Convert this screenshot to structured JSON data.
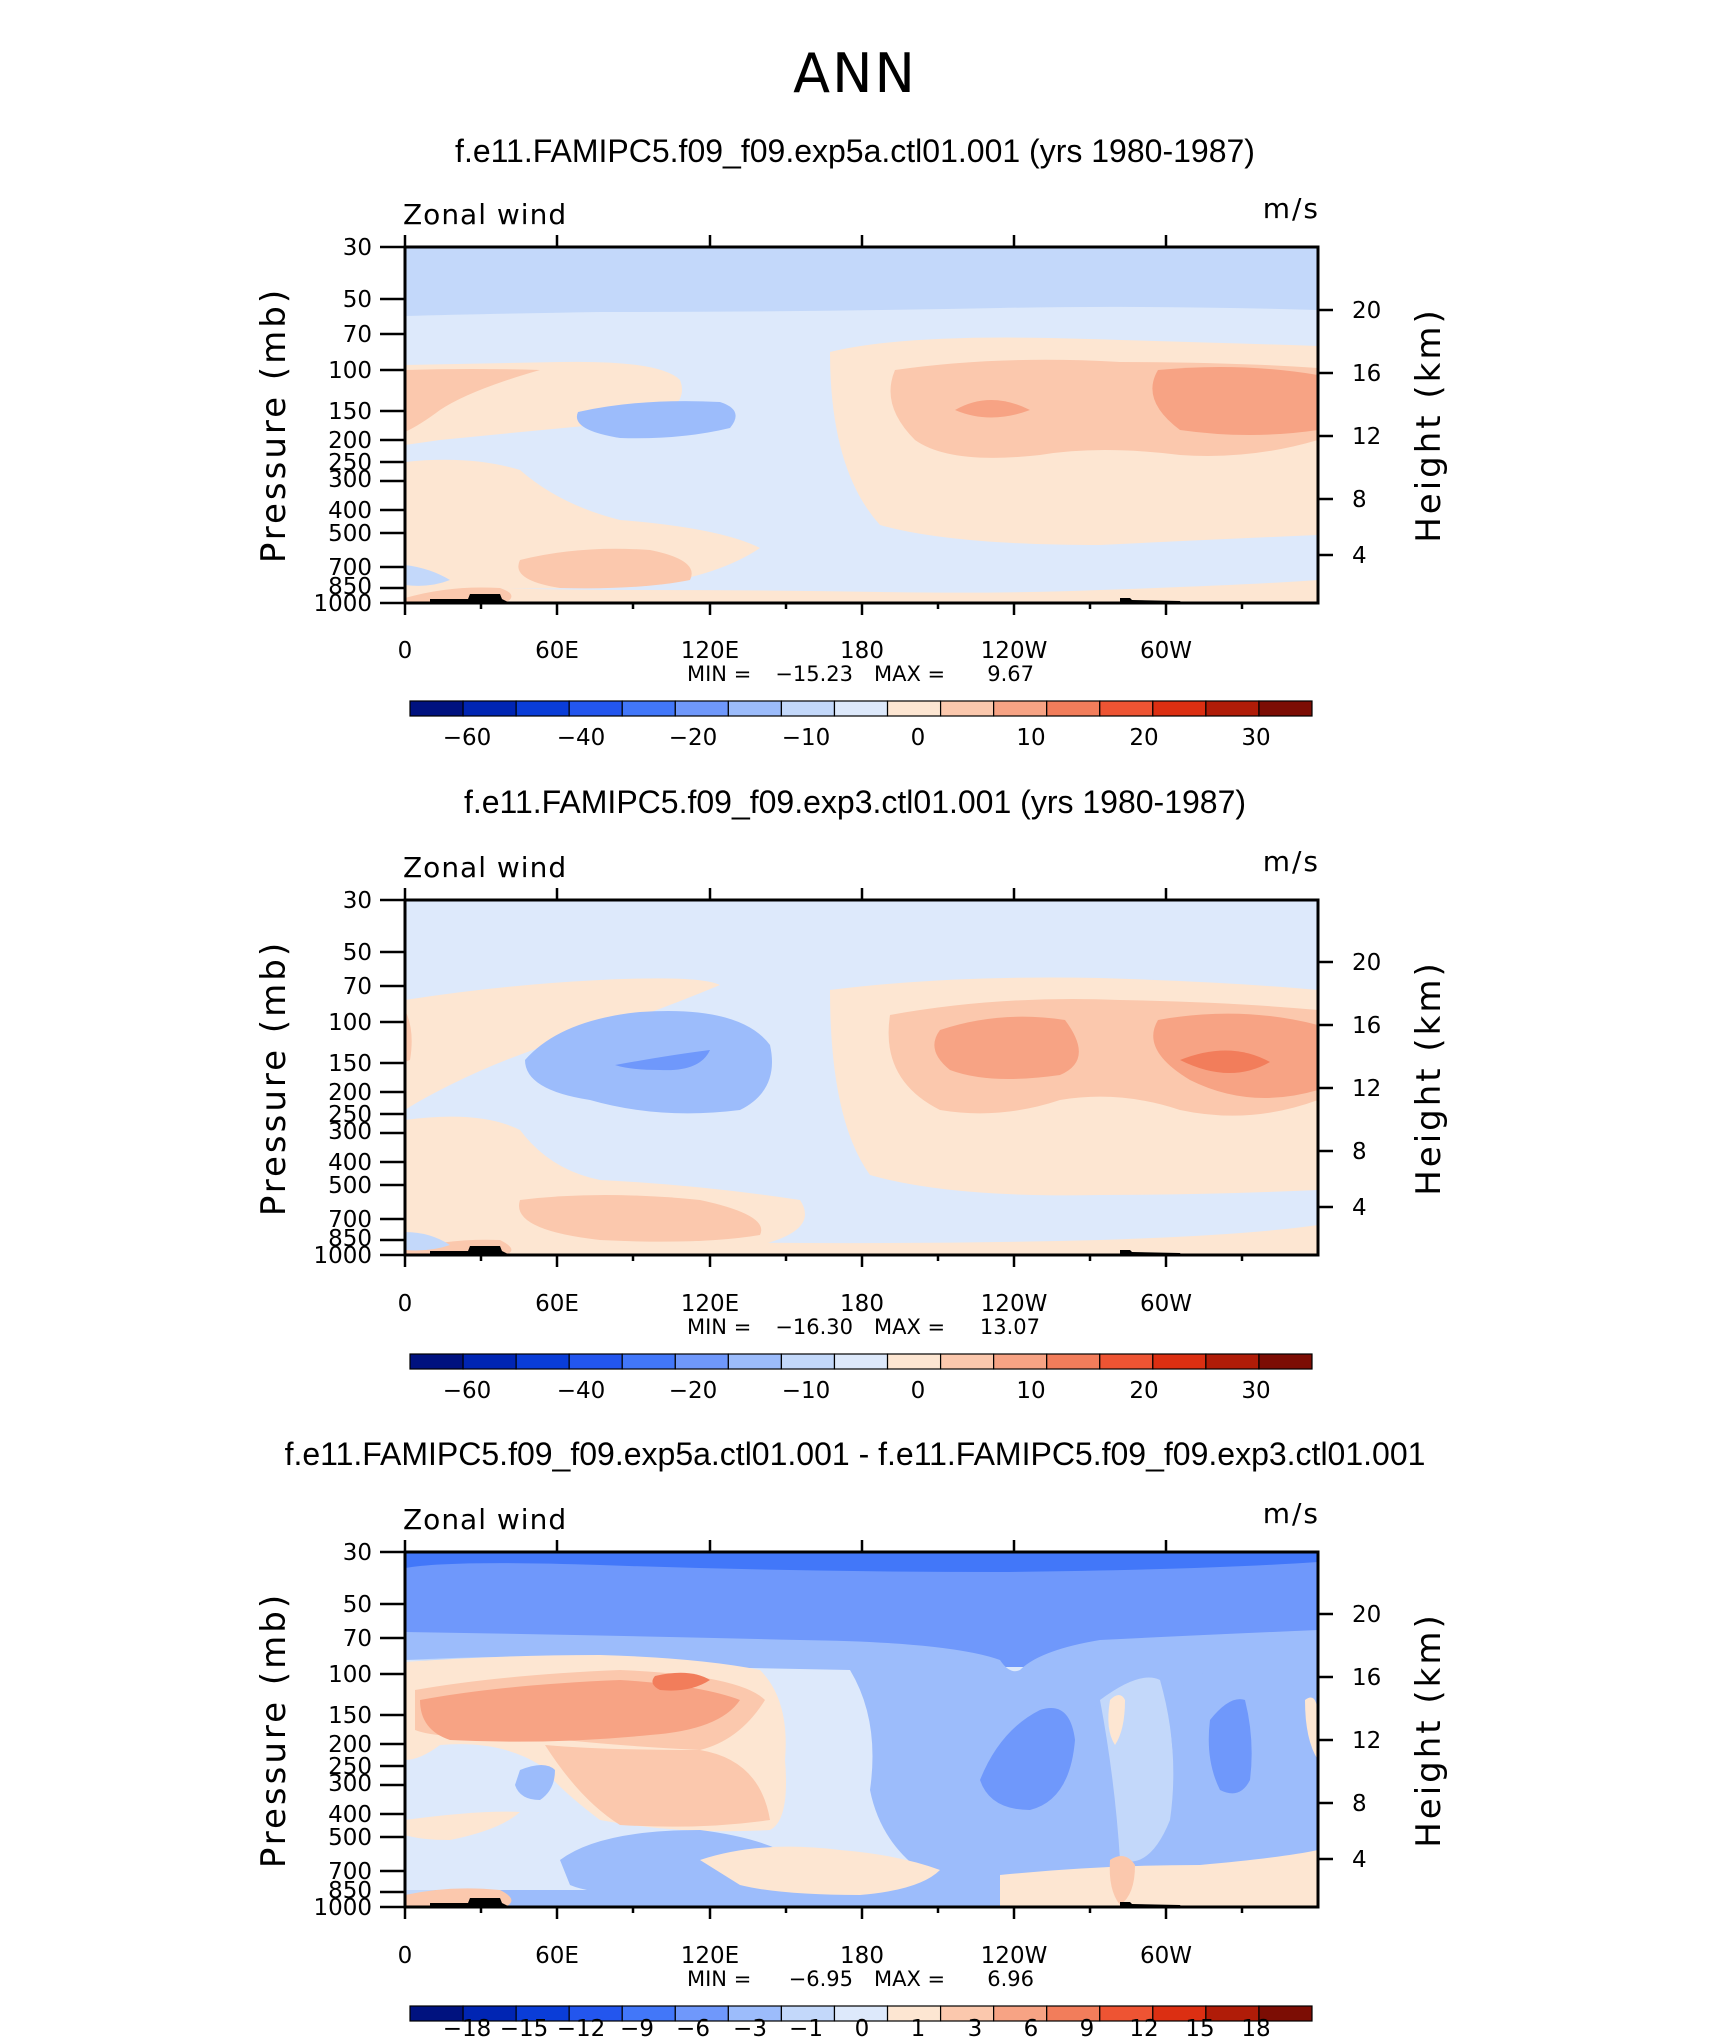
{
  "page": {
    "title": "ANN"
  },
  "colormap_main": [
    "#00127f",
    "#0025b3",
    "#0a3dd8",
    "#2356ee",
    "#4277f9",
    "#6f98fb",
    "#9cbcfb",
    "#c3d8fa",
    "#dde9fb",
    "#fde6d2",
    "#fbc8ad",
    "#f7a384",
    "#f27d5b",
    "#ee5433",
    "#dc2f12",
    "#b01c08",
    "#7c0d04"
  ],
  "colormap_diff": [
    "#00127f",
    "#0025b3",
    "#0a3dd8",
    "#2356ee",
    "#4277f9",
    "#6f98fb",
    "#9cbcfb",
    "#c3d8fa",
    "#dde9fb",
    "#fde6d2",
    "#fbc8ad",
    "#f7a384",
    "#f27d5b",
    "#ee5433",
    "#dc2f12",
    "#b01c08",
    "#7c0d04"
  ],
  "panels": [
    {
      "title": "f.e11.FAMIPC5.f09_f09.exp5a.ctl01.001 (yrs 1980-1987)",
      "left_label": "Zonal wind",
      "right_label": "m/s",
      "min_label": "MIN =",
      "min_value": "−15.23",
      "max_label": "MAX =",
      "max_value": "9.67",
      "colorbar_ticks": [
        "−60",
        "−40",
        "−20",
        "−10",
        "0",
        "10",
        "20",
        "30"
      ]
    },
    {
      "title": "f.e11.FAMIPC5.f09_f09.exp3.ctl01.001 (yrs 1980-1987)",
      "left_label": "Zonal wind",
      "right_label": "m/s",
      "min_label": "MIN =",
      "min_value": "−16.30",
      "max_label": "MAX =",
      "max_value": "13.07",
      "colorbar_ticks": [
        "−60",
        "−40",
        "−20",
        "−10",
        "0",
        "10",
        "20",
        "30"
      ]
    },
    {
      "title": "f.e11.FAMIPC5.f09_f09.exp5a.ctl01.001 - f.e11.FAMIPC5.f09_f09.exp3.ctl01.001",
      "left_label": "Zonal wind",
      "right_label": "m/s",
      "min_label": "MIN =",
      "min_value": "−6.95",
      "max_label": "MAX =",
      "max_value": "6.96",
      "colorbar_ticks": [
        "−18",
        "−15",
        "−12",
        "−9",
        "−6",
        "−3",
        "−1",
        "0",
        "1",
        "3",
        "6",
        "9",
        "12",
        "15",
        "18"
      ]
    }
  ],
  "chart_data": [
    {
      "type": "heatmap",
      "title": "f.e11.FAMIPC5.f09_f09.exp5a.ctl01.001 (yrs 1980-1987)",
      "subtitle": "Zonal wind",
      "units": "m/s",
      "xlabel": "",
      "ylabel": "Pressure (mb)",
      "y2label": "Height (km)",
      "x_ticks": [
        "0",
        "60E",
        "120E",
        "180",
        "120W",
        "60W"
      ],
      "y_ticks": [
        "30",
        "50",
        "70",
        "100",
        "150",
        "200",
        "250",
        "300",
        "400",
        "500",
        "700",
        "850",
        "1000"
      ],
      "y2_ticks": [
        "20",
        "16",
        "12",
        "8",
        "4"
      ],
      "y_scale": "log",
      "ylim": [
        1000,
        30
      ],
      "min": -15.23,
      "max": 9.67,
      "contour_levels": [
        -70,
        -60,
        -50,
        -40,
        -30,
        -20,
        -15,
        -10,
        -5,
        0,
        5,
        10,
        15,
        20,
        25,
        30,
        35
      ],
      "grid": false
    },
    {
      "type": "heatmap",
      "title": "f.e11.FAMIPC5.f09_f09.exp3.ctl01.001 (yrs 1980-1987)",
      "subtitle": "Zonal wind",
      "units": "m/s",
      "xlabel": "",
      "ylabel": "Pressure (mb)",
      "y2label": "Height (km)",
      "x_ticks": [
        "0",
        "60E",
        "120E",
        "180",
        "120W",
        "60W"
      ],
      "y_ticks": [
        "30",
        "50",
        "70",
        "100",
        "150",
        "200",
        "250",
        "300",
        "400",
        "500",
        "700",
        "850",
        "1000"
      ],
      "y2_ticks": [
        "20",
        "16",
        "12",
        "8",
        "4"
      ],
      "y_scale": "log",
      "ylim": [
        1000,
        30
      ],
      "min": -16.3,
      "max": 13.07,
      "contour_levels": [
        -70,
        -60,
        -50,
        -40,
        -30,
        -20,
        -15,
        -10,
        -5,
        0,
        5,
        10,
        15,
        20,
        25,
        30,
        35
      ],
      "grid": false
    },
    {
      "type": "heatmap",
      "title": "f.e11.FAMIPC5.f09_f09.exp5a.ctl01.001 - f.e11.FAMIPC5.f09_f09.exp3.ctl01.001",
      "subtitle": "Zonal wind",
      "units": "m/s",
      "xlabel": "",
      "ylabel": "Pressure (mb)",
      "y2label": "Height (km)",
      "x_ticks": [
        "0",
        "60E",
        "120E",
        "180",
        "120W",
        "60W"
      ],
      "y_ticks": [
        "30",
        "50",
        "70",
        "100",
        "150",
        "200",
        "250",
        "300",
        "400",
        "500",
        "700",
        "850",
        "1000"
      ],
      "y2_ticks": [
        "20",
        "16",
        "12",
        "8",
        "4"
      ],
      "y_scale": "log",
      "ylim": [
        1000,
        30
      ],
      "min": -6.95,
      "max": 6.96,
      "contour_levels": [
        -18,
        -15,
        -12,
        -9,
        -6,
        -3,
        -1,
        0,
        1,
        3,
        6,
        9,
        12,
        15,
        18
      ],
      "grid": false
    }
  ]
}
